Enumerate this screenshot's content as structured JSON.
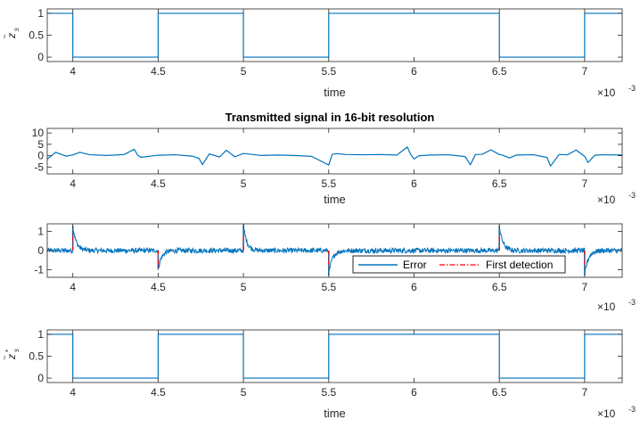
{
  "chart_data": [
    {
      "type": "line",
      "title": "",
      "ylabel": "z_s (tilde)",
      "xlabel": "time",
      "x_exponent": "×10",
      "x_exponent_power": "-3",
      "xlim": [
        0.00385,
        0.00722
      ],
      "ylim": [
        -0.1,
        1.1
      ],
      "xticks": [
        0.004,
        0.0045,
        0.005,
        0.0055,
        0.006,
        0.0065,
        0.007
      ],
      "xtick_labels": [
        "4",
        "4.5",
        "5",
        "5.5",
        "6",
        "6.5",
        "7"
      ],
      "yticks": [
        0,
        0.5,
        1
      ],
      "ytick_labels": [
        "0",
        "0.5",
        "1"
      ],
      "series": [
        {
          "name": "z_s",
          "color": "#0072BD",
          "x": [
            0.00385,
            0.004,
            0.004,
            0.0045,
            0.0045,
            0.005,
            0.005,
            0.0055,
            0.0055,
            0.0065,
            0.0065,
            0.007,
            0.007,
            0.00722
          ],
          "y": [
            1,
            1,
            0,
            0,
            1,
            1,
            0,
            0,
            1,
            1,
            0,
            0,
            1,
            1
          ]
        }
      ]
    },
    {
      "type": "line",
      "title": "Transmitted signal in 16-bit resolution",
      "ylabel": "",
      "xlabel": "time",
      "x_exponent": "×10",
      "x_exponent_power": "-3",
      "xlim": [
        0.00385,
        0.00722
      ],
      "ylim": [
        -8,
        12
      ],
      "xticks": [
        0.004,
        0.0045,
        0.005,
        0.0055,
        0.006,
        0.0065,
        0.007
      ],
      "xtick_labels": [
        "4",
        "4.5",
        "5",
        "5.5",
        "6",
        "6.5",
        "7"
      ],
      "yticks": [
        -5,
        0,
        5,
        10
      ],
      "ytick_labels": [
        "-5",
        "0",
        "5",
        "10"
      ],
      "series": [
        {
          "name": "transmitted",
          "color": "#0072BD",
          "x": [
            0.00385,
            0.0039,
            0.00396,
            0.004,
            0.00404,
            0.0041,
            0.0042,
            0.0043,
            0.00436,
            0.00438,
            0.0044,
            0.0045,
            0.0046,
            0.0047,
            0.00474,
            0.00476,
            0.0048,
            0.00486,
            0.0049,
            0.00495,
            0.005,
            0.0051,
            0.0052,
            0.0053,
            0.0054,
            0.0055,
            0.00552,
            0.00555,
            0.0056,
            0.0057,
            0.0058,
            0.0059,
            0.00596,
            0.00598,
            0.006,
            0.00603,
            0.0061,
            0.0062,
            0.0063,
            0.00633,
            0.00636,
            0.0064,
            0.00645,
            0.0065,
            0.00652,
            0.00656,
            0.0066,
            0.0067,
            0.00678,
            0.0068,
            0.00685,
            0.0069,
            0.00695,
            0.007,
            0.00702,
            0.00706,
            0.0071,
            0.00722
          ],
          "y": [
            -1.5,
            1.5,
            -0.2,
            0.3,
            1.5,
            0.4,
            0.1,
            0.5,
            2.8,
            0.2,
            -0.7,
            0.2,
            0.4,
            -0.2,
            -1.2,
            -3.9,
            0.8,
            -0.6,
            2.4,
            -0.5,
            1.0,
            0.1,
            0.3,
            0.1,
            -0.3,
            -4.1,
            0.6,
            0.9,
            0.5,
            0.4,
            0.5,
            0.3,
            3.8,
            0.6,
            -1.5,
            0.0,
            0.3,
            0.4,
            -0.4,
            -4.0,
            0.5,
            0.6,
            2.6,
            0.5,
            0.2,
            -1.0,
            0.3,
            0.4,
            -0.8,
            -4.6,
            0.5,
            0.4,
            2.5,
            -0.3,
            -3.0,
            0.2,
            0.4,
            0.3
          ]
        }
      ]
    },
    {
      "type": "line",
      "title": "",
      "ylabel": "",
      "xlabel": "",
      "x_exponent": "×10",
      "x_exponent_power": "-3",
      "xlim": [
        0.00385,
        0.00722
      ],
      "ylim": [
        -1.4,
        1.4
      ],
      "xticks": [
        0.004,
        0.0045,
        0.005,
        0.0055,
        0.006,
        0.0065,
        0.007
      ],
      "xtick_labels": [
        "4",
        "4.5",
        "5",
        "5.5",
        "6",
        "6.5",
        "7"
      ],
      "yticks": [
        -1,
        0,
        1
      ],
      "ytick_labels": [
        "-1",
        "0",
        "1"
      ],
      "legend": [
        "Error",
        "First detection"
      ],
      "legend_location": "lower-right",
      "series": [
        {
          "name": "Error",
          "color": "#0072BD",
          "style": "noisy",
          "noise_amplitude": 0.13,
          "spikes": [
            {
              "x": 0.004,
              "y": 1.3,
              "decay": 2e-05
            },
            {
              "x": 0.0045,
              "y": -1.0,
              "decay": 2e-05
            },
            {
              "x": 0.005,
              "y": 1.3,
              "decay": 2e-05
            },
            {
              "x": 0.0055,
              "y": -1.3,
              "decay": 2e-05
            },
            {
              "x": 0.0065,
              "y": 1.3,
              "decay": 2e-05
            },
            {
              "x": 0.007,
              "y": -1.3,
              "decay": 2e-05
            }
          ]
        },
        {
          "name": "First detection",
          "color": "#FF0000",
          "style": "dash-dot",
          "events": [
            {
              "x": 0.004,
              "direction": 1
            },
            {
              "x": 0.0045,
              "direction": -1
            },
            {
              "x": 0.005,
              "direction": 1
            },
            {
              "x": 0.0055,
              "direction": -1
            },
            {
              "x": 0.0065,
              "direction": 1
            },
            {
              "x": 0.007,
              "direction": -1
            }
          ]
        }
      ]
    },
    {
      "type": "line",
      "title": "",
      "ylabel": "z_s* (tilde)",
      "xlabel": "time",
      "x_exponent": "×10",
      "x_exponent_power": "-3",
      "xlim": [
        0.00385,
        0.00722
      ],
      "ylim": [
        -0.1,
        1.1
      ],
      "xticks": [
        0.004,
        0.0045,
        0.005,
        0.0055,
        0.006,
        0.0065,
        0.007
      ],
      "xtick_labels": [
        "4",
        "4.5",
        "5",
        "5.5",
        "6",
        "6.5",
        "7"
      ],
      "yticks": [
        0,
        0.5,
        1
      ],
      "ytick_labels": [
        "0",
        "0.5",
        "1"
      ],
      "series": [
        {
          "name": "z_s*",
          "color": "#0072BD",
          "x": [
            0.00385,
            0.004,
            0.004,
            0.0045,
            0.0045,
            0.005,
            0.005,
            0.0055,
            0.0055,
            0.0065,
            0.0065,
            0.007,
            0.007,
            0.00722
          ],
          "y": [
            1,
            1,
            0,
            0,
            1,
            1,
            0,
            0,
            1,
            1,
            0,
            0,
            1,
            1
          ]
        }
      ]
    }
  ]
}
